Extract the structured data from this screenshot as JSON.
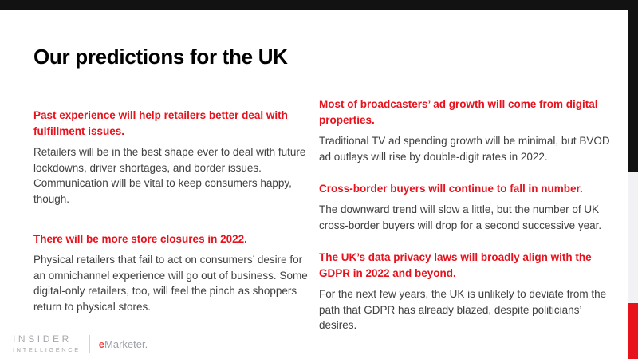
{
  "title": "Our predictions for the UK",
  "columns": {
    "left": [
      {
        "heading": "Past experience will help retailers better deal with fulfillment issues.",
        "body": "Retailers will be in the best shape ever to deal with future lockdowns, driver shortages, and border issues. Communication will be vital to keep consumers happy, though."
      },
      {
        "heading": "There will be more store closures in 2022.",
        "body": "Physical retailers that fail to act on consumers’ desire for an omnichannel experience will go out of business. Some digital-only retailers, too, will feel the pinch as shoppers return to physical stores."
      }
    ],
    "right": [
      {
        "heading": "Most of broadcasters’ ad growth will come from digital properties.",
        "body": "Traditional TV ad spending growth will be minimal, but BVOD ad outlays will rise by double-digit rates in 2022."
      },
      {
        "heading": "Cross-border buyers will continue to fall in number.",
        "body": "The downward trend will slow a little, but the number of UK cross-border buyers will drop for a second successive year."
      },
      {
        "heading": "The UK’s data privacy laws will broadly align with the GDPR in 2022 and beyond.",
        "body": "For the next few years, the UK is unlikely to deviate from the path that GDPR has already blazed, despite politicians’ desires."
      }
    ]
  },
  "footer": {
    "brand_line1": "INSIDER",
    "brand_line2": "INTELLIGENCE",
    "emarketer_e": "e",
    "emarketer_rest": "Marketer."
  },
  "colors": {
    "heading_red": "#e8111c",
    "rail_red": "#e8121d",
    "bar_black": "#121212",
    "rail_gray": "#f2f2f4",
    "body_text": "#404040",
    "logo_gray": "#a5a9ae",
    "emarketer_e_red": "#ef423e"
  }
}
